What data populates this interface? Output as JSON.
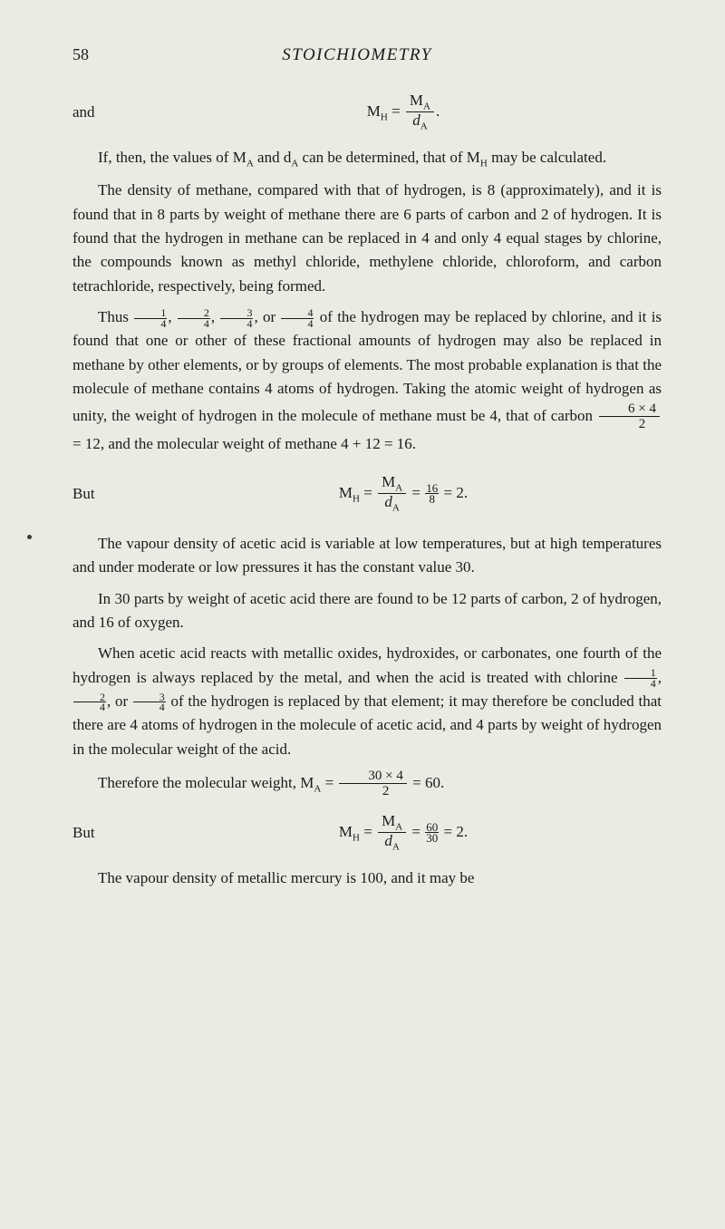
{
  "header": {
    "page_number": "58",
    "running_title": "STOICHIOMETRY"
  },
  "eq1": {
    "label": "and",
    "lhs": "M",
    "lhs_sub": "H",
    "rhs_num": "M",
    "rhs_num_sub": "A",
    "rhs_den": "d",
    "rhs_den_sub": "A",
    "period": "."
  },
  "para1": "If, then, the values of M",
  "para1_sub1": "A",
  "para1_cont1": " and d",
  "para1_sub2": "A",
  "para1_cont2": " can be determined, that of M",
  "para1_sub3": "H",
  "para1_cont3": " may be calculated.",
  "para2": "The density of methane, compared with that of hydrogen, is 8 (approximately), and it is found that in 8 parts by weight of methane there are 6 parts of carbon and 2 of hydrogen. It is found that the hydrogen in methane can be replaced in 4 and only 4 equal stages by chlorine, the compounds known as methyl chloride, methylene chloride, chloroform, and carbon tetrachloride, respectively, being formed.",
  "para3_a": "Thus ",
  "para3_b": ", ",
  "para3_c": ", ",
  "para3_d": ", or ",
  "para3_e": " of the hydrogen may be replaced by chlorine, and it is found that one or other of these fractional amounts of hydrogen may also be replaced in methane by other elements, or by groups of elements. The most probable explanation is that the molecule of methane contains 4 atoms of hydrogen. Taking the atomic weight of hydrogen as unity, the weight of hydrogen in the molecule of methane must be 4, that of carbon ",
  "frac_6x4_num": "6 × 4",
  "frac_6x4_den": "2",
  "para3_f": " = 12, and the molecular weight of methane 4 + 12 = 16.",
  "f1n": "1",
  "f1d": "4",
  "f2n": "2",
  "f2d": "4",
  "f3n": "3",
  "f3d": "4",
  "f4n": "4",
  "f4d": "4",
  "eq2": {
    "label": "But",
    "pre": "M",
    "pre_sub": "H",
    "eq": " = ",
    "frac_num": "M",
    "frac_num_sub": "A",
    "frac_den": "d",
    "frac_den_sub": "A",
    "mid": " = ",
    "f16n": "16",
    "f16d": "8",
    "end": " = 2."
  },
  "para4": "The vapour density of acetic acid is variable at low temperatures, but at high temperatures and under moderate or low pressures it has the constant value 30.",
  "para5": "In 30 parts by weight of acetic acid there are found to be 12 parts of carbon, 2 of hydrogen, and 16 of oxygen.",
  "para6_a": "When acetic acid reacts with metallic oxides, hydroxides, or carbonates, one fourth of the hydrogen is always replaced by the metal, and when the acid is treated with chlorine ",
  "para6_b": ", ",
  "para6_c": ", or ",
  "para6_d": " of the hydrogen is replaced by that element; it may therefore be concluded that there are 4 atoms of hydrogen in the molecule of acetic acid, and 4 parts by weight of hydrogen in the molecular weight of the acid.",
  "g1n": "1",
  "g1d": "4",
  "g2n": "2",
  "g2d": "4",
  "g3n": "3",
  "g3d": "4",
  "para7_a": "Therefore the molecular weight, M",
  "para7_sub": "A",
  "para7_b": " = ",
  "frac_30x4_num": "30 × 4",
  "frac_30x4_den": "2",
  "para7_c": " = 60.",
  "eq3": {
    "label": "But",
    "pre": "M",
    "pre_sub": "H",
    "eq": " = ",
    "frac_num": "M",
    "frac_num_sub": "A",
    "frac_den": "d",
    "frac_den_sub": "A",
    "mid": " = ",
    "f60n": "60",
    "f60d": "30",
    "end": " = 2."
  },
  "para8": "The vapour density of metallic mercury is 100, and it may be"
}
